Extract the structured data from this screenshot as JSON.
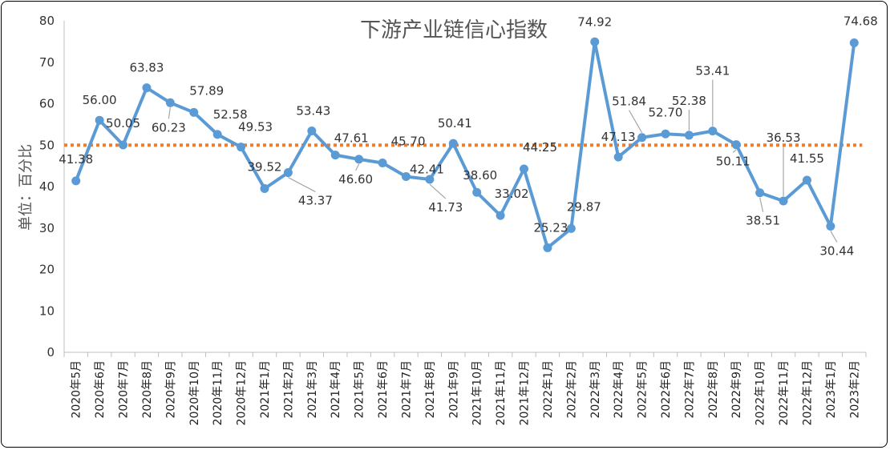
{
  "chart_data": {
    "type": "line",
    "title": "下游产业链信心指数",
    "ylabel": "单位：百分比",
    "xlabel": "",
    "ylim": [
      0,
      80
    ],
    "yticks": [
      0,
      10,
      20,
      30,
      40,
      50,
      60,
      70,
      80
    ],
    "grid": false,
    "categories": [
      "2020年5月",
      "2020年6月",
      "2020年7月",
      "2020年8月",
      "2020年9月",
      "2020年10月",
      "2020年11月",
      "2020年12月",
      "2021年1月",
      "2021年2月",
      "2021年3月",
      "2021年4月",
      "2021年5月",
      "2021年6月",
      "2021年7月",
      "2021年8月",
      "2021年9月",
      "2021年10月",
      "2021年11月",
      "2021年12月",
      "2022年1月",
      "2022年2月",
      "2022年3月",
      "2022年4月",
      "2022年5月",
      "2022年6月",
      "2022年7月",
      "2022年8月",
      "2022年9月",
      "2022年10月",
      "2022年11月",
      "2022年12月",
      "2023年1月",
      "2023年2月"
    ],
    "series": [
      {
        "color": "#5b9bd5",
        "values": [
          41.38,
          56.0,
          50.05,
          63.83,
          60.23,
          57.89,
          52.58,
          49.53,
          39.52,
          43.37,
          53.43,
          47.61,
          46.6,
          45.7,
          42.41,
          41.73,
          50.41,
          38.6,
          33.02,
          44.25,
          25.23,
          29.87,
          74.92,
          47.13,
          51.84,
          52.7,
          52.38,
          53.41,
          50.11,
          38.51,
          36.53,
          41.55,
          30.44,
          74.68
        ],
        "labels": [
          "41.38",
          "56.00",
          "50.05",
          "63.83",
          "60.23",
          "57.89",
          "52.58",
          "49.53",
          "39.52",
          "43.37",
          "53.43",
          "47.61",
          "46.60",
          "45.70",
          "42.41",
          "41.73",
          "50.41",
          "38.60",
          "33.02",
          "44.25",
          "25.23",
          "29.87",
          "74.92",
          "47.13",
          "51.84",
          "52.70",
          "52.38",
          "53.41",
          "50.11",
          "38.51",
          "36.53",
          "41.55",
          "30.44",
          "74.68"
        ]
      }
    ],
    "reference_line": {
      "value": 50,
      "color": "#ed7d31",
      "style": "dotted"
    }
  }
}
